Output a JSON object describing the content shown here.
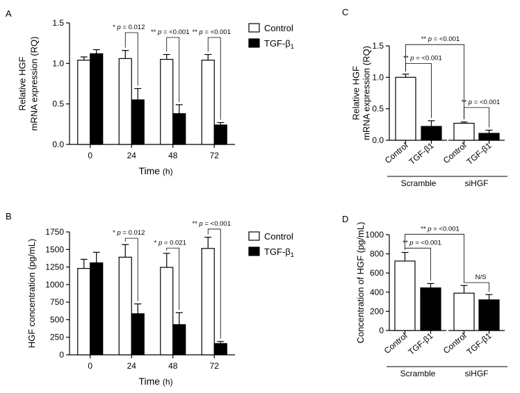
{
  "colors": {
    "control": "#ffffff",
    "tgf": "#000000",
    "stroke": "#000000"
  },
  "chart_data": [
    {
      "panel": "A",
      "type": "bar",
      "categories": [
        "0",
        "24",
        "48",
        "72"
      ],
      "category_labels": [
        {
          "text": "0"
        },
        {
          "text": "24"
        },
        {
          "text": "48"
        },
        {
          "text": "72"
        }
      ],
      "series": [
        {
          "name": "Control",
          "values": [
            1.04,
            1.06,
            1.05,
            1.04
          ],
          "errors": [
            0.04,
            0.1,
            0.06,
            0.07
          ]
        },
        {
          "name": "TGF-β",
          "subscript": "1",
          "values": [
            1.12,
            0.55,
            0.38,
            0.24
          ],
          "errors": [
            0.05,
            0.14,
            0.11,
            0.03
          ]
        }
      ],
      "ylabel_lines": [
        "Relative HGF",
        "mRNA expression (RQ)"
      ],
      "xlabel": "Time",
      "xunit": "(h)",
      "ylim": [
        0,
        1.5
      ],
      "yticks": [
        {
          "v": 0,
          "t": "0.0"
        },
        {
          "v": 0.5,
          "t": "0.5"
        },
        {
          "v": 1.0,
          "t": "1.0"
        },
        {
          "v": 1.5,
          "t": "1.5"
        }
      ],
      "annotations": [
        {
          "cat": 1,
          "stars": "*",
          "text": "p = 0.012",
          "top": 1.38
        },
        {
          "cat": 2,
          "stars": "**",
          "text": "p = <0.001",
          "top": 1.32
        },
        {
          "cat": 3,
          "stars": "**",
          "text": "p = <0.001",
          "top": 1.32
        }
      ],
      "legend": {
        "position": "top-right",
        "entries": [
          "Control",
          "TGF-β"
        ]
      }
    },
    {
      "panel": "B",
      "type": "bar",
      "categories": [
        "0",
        "24",
        "48",
        "72"
      ],
      "category_labels": [
        {
          "text": "0"
        },
        {
          "text": "24"
        },
        {
          "text": "48"
        },
        {
          "text": "72"
        }
      ],
      "series": [
        {
          "name": "Control",
          "values": [
            1230,
            1390,
            1245,
            1515
          ],
          "errors": [
            130,
            180,
            200,
            160
          ]
        },
        {
          "name": "TGF-β",
          "subscript": "1",
          "values": [
            1310,
            585,
            430,
            160
          ],
          "errors": [
            150,
            140,
            170,
            30
          ]
        }
      ],
      "ylabel_lines": [
        "HGF concentration (pg/mL)"
      ],
      "xlabel": "Time",
      "xunit": "(h)",
      "ylim": [
        0,
        1750
      ],
      "yticks": [
        {
          "v": 0,
          "t": "0"
        },
        {
          "v": 250,
          "t": "250"
        },
        {
          "v": 500,
          "t": "500"
        },
        {
          "v": 750,
          "t": "750"
        },
        {
          "v": 1000,
          "t": "1000"
        },
        {
          "v": 1250,
          "t": "1250"
        },
        {
          "v": 1500,
          "t": "1500"
        },
        {
          "v": 1750,
          "t": "1750"
        }
      ],
      "annotations": [
        {
          "cat": 1,
          "stars": "*",
          "text": "p = 0.012",
          "top": 1660
        },
        {
          "cat": 2,
          "stars": "*",
          "text": "p = 0.021",
          "top": 1520
        },
        {
          "cat": 3,
          "stars": "**",
          "text": "p = <0.001",
          "top": 1790
        }
      ],
      "legend": {
        "position": "top-right",
        "entries": [
          "Control",
          "TGF-β"
        ]
      }
    },
    {
      "panel": "C",
      "type": "bar",
      "categories": [
        "Control",
        "TGF-β1",
        "Control",
        "TGF-β1"
      ],
      "category_labels": [
        {
          "text": "Control"
        },
        {
          "text": "TGF-β1"
        },
        {
          "text": "Control"
        },
        {
          "text": "TGF-β1"
        }
      ],
      "values": [
        1.0,
        0.22,
        0.27,
        0.11
      ],
      "errors": [
        0.05,
        0.09,
        0.02,
        0.05
      ],
      "fills": [
        "#ffffff",
        "#000000",
        "#ffffff",
        "#000000"
      ],
      "groups": [
        {
          "name": "Scramble"
        },
        {
          "name": "siHGF"
        }
      ],
      "ylabel_lines": [
        "Relative HGF",
        "mRNA expression (RQ)"
      ],
      "ylim": [
        0,
        1.5
      ],
      "yticks": [
        {
          "v": 0,
          "t": "0.0"
        },
        {
          "v": 0.5,
          "t": "0.5"
        },
        {
          "v": 1.0,
          "t": "1.0"
        },
        {
          "v": 1.5,
          "t": "1.5"
        }
      ],
      "annotations": [
        {
          "from": 0,
          "to": 2,
          "stars": "**",
          "text": "p = <0.001",
          "top": 1.52
        },
        {
          "from": 0,
          "to": 1,
          "stars": "**",
          "text": "p = <0.001",
          "top": 1.22
        },
        {
          "from": 2,
          "to": 3,
          "stars": "**",
          "text": "p = <0.001",
          "top": 0.52
        }
      ]
    },
    {
      "panel": "D",
      "type": "bar",
      "categories": [
        "Control",
        "TGF-β1",
        "Control",
        "TGF-β1"
      ],
      "category_labels": [
        {
          "text": "Control"
        },
        {
          "text": "TGF-β1"
        },
        {
          "text": "Control"
        },
        {
          "text": "TGF-β1"
        }
      ],
      "values": [
        725,
        445,
        390,
        320
      ],
      "errors": [
        90,
        45,
        80,
        55
      ],
      "fills": [
        "#ffffff",
        "#000000",
        "#ffffff",
        "#000000"
      ],
      "groups": [
        {
          "name": "Scramble"
        },
        {
          "name": "siHGF"
        }
      ],
      "ylabel_lines": [
        "Concentration of HGF (pg/mL)"
      ],
      "ylim": [
        0,
        1000
      ],
      "yticks": [
        {
          "v": 0,
          "t": "0"
        },
        {
          "v": 200,
          "t": "200"
        },
        {
          "v": 400,
          "t": "400"
        },
        {
          "v": 600,
          "t": "600"
        },
        {
          "v": 800,
          "t": "800"
        },
        {
          "v": 1000,
          "t": "1000"
        }
      ],
      "annotations": [
        {
          "from": 0,
          "to": 2,
          "stars": "**",
          "text": "p = <0.001",
          "top": 1005
        },
        {
          "from": 0,
          "to": 1,
          "stars": "**",
          "text": "p = <0.001",
          "top": 860
        },
        {
          "from": 2,
          "to": 3,
          "stars": "",
          "text": "N/S",
          "top": 500
        }
      ]
    }
  ]
}
